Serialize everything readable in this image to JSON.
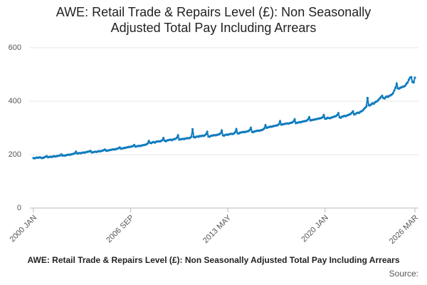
{
  "chart_data": {
    "type": "line",
    "title": "AWE: Retail Trade & Repairs Level (£): Non Seasonally Adjusted Total Pay Including Arrears",
    "footer": "AWE: Retail Trade & Repairs Level (£): Non Seasonally Adjusted Total Pay Including Arrears",
    "source": "Source:",
    "categories": [
      "2000 JAN",
      null,
      null,
      null,
      null,
      null,
      null,
      null,
      null,
      null,
      null,
      null,
      null,
      null,
      null,
      null,
      null,
      null,
      null,
      null,
      null,
      null,
      null,
      null,
      null,
      null,
      null,
      null,
      null,
      null,
      null,
      null,
      null,
      null,
      null,
      null,
      null,
      null,
      null,
      null,
      null,
      null,
      null,
      null,
      null,
      null,
      null,
      null,
      null,
      null,
      null,
      null,
      null,
      null,
      null,
      null,
      null,
      null,
      null,
      null,
      null,
      null,
      null,
      null,
      null,
      null,
      null,
      null,
      null,
      null,
      null,
      null,
      null,
      null,
      null,
      null,
      null,
      null,
      null,
      null,
      "2006 SEP",
      null,
      null,
      null,
      null,
      null,
      null,
      null,
      null,
      null,
      null,
      null,
      null,
      null,
      null,
      null,
      null,
      null,
      null,
      null,
      null,
      null,
      null,
      null,
      null,
      null,
      null,
      null,
      null,
      null,
      null,
      null,
      null,
      null,
      null,
      null,
      null,
      null,
      null,
      null,
      null,
      null,
      null,
      null,
      null,
      null,
      null,
      null,
      null,
      null,
      null,
      null,
      null,
      null,
      null,
      null,
      null,
      null,
      null,
      null,
      null,
      null,
      null,
      null,
      null,
      null,
      null,
      null,
      null,
      null,
      null,
      null,
      null,
      null,
      null,
      null,
      null,
      null,
      null,
      null,
      "2013 MAY",
      null,
      null,
      null,
      null,
      null,
      null,
      null,
      null,
      null,
      null,
      null,
      null,
      null,
      null,
      null,
      null,
      null,
      null,
      null,
      null,
      null,
      null,
      null,
      null,
      null,
      null,
      null,
      null,
      null,
      null,
      null,
      null,
      null,
      null,
      null,
      null,
      null,
      null,
      null,
      null,
      null,
      null,
      null,
      null,
      null,
      null,
      null,
      null,
      null,
      null,
      null,
      null,
      null,
      null,
      null,
      null,
      null,
      null,
      null,
      null,
      null,
      null,
      null,
      null,
      null,
      null,
      null,
      null,
      null,
      null,
      null,
      null,
      null,
      null,
      null,
      null,
      null,
      null,
      null,
      "2020 JAN",
      null,
      null,
      null,
      null,
      null,
      null,
      null,
      null,
      null,
      null,
      null,
      null,
      null,
      null,
      null,
      null,
      null,
      null,
      null,
      null,
      null,
      null,
      null,
      null,
      null,
      null,
      null,
      null,
      null,
      null,
      null,
      null,
      null,
      null,
      null,
      null,
      null,
      null,
      null,
      null,
      null,
      null,
      null,
      null,
      null,
      null,
      null,
      null,
      null,
      null,
      null,
      null,
      null,
      null,
      null,
      null,
      null,
      null,
      null,
      null,
      null,
      null,
      null,
      null,
      null,
      null,
      null,
      null,
      null,
      null,
      null,
      null,
      null,
      "2026 MAR"
    ],
    "values": [
      187,
      186,
      188,
      189,
      188,
      190,
      189,
      187,
      188,
      190,
      192,
      194,
      190,
      191,
      192,
      191,
      193,
      194,
      193,
      194,
      195,
      196,
      197,
      201,
      196,
      197,
      196,
      198,
      199,
      200,
      199,
      201,
      202,
      203,
      205,
      211,
      204,
      205,
      206,
      205,
      207,
      208,
      207,
      209,
      210,
      211,
      212,
      214,
      208,
      209,
      210,
      211,
      210,
      212,
      213,
      212,
      214,
      215,
      217,
      219,
      214,
      215,
      216,
      217,
      218,
      219,
      220,
      219,
      221,
      222,
      224,
      227,
      222,
      223,
      224,
      225,
      226,
      227,
      228,
      229,
      229,
      231,
      232,
      236,
      230,
      231,
      232,
      233,
      232,
      234,
      235,
      236,
      237,
      238,
      242,
      251,
      244,
      243,
      246,
      247,
      245,
      248,
      249,
      250,
      249,
      251,
      254,
      262,
      252,
      250,
      253,
      254,
      255,
      256,
      254,
      257,
      258,
      259,
      263,
      272,
      256,
      257,
      258,
      259,
      258,
      260,
      261,
      262,
      261,
      263,
      267,
      295,
      266,
      264,
      267,
      268,
      267,
      270,
      269,
      271,
      270,
      272,
      276,
      285,
      268,
      267,
      270,
      271,
      272,
      273,
      272,
      274,
      275,
      276,
      280,
      290,
      272,
      271,
      274,
      275,
      274,
      276,
      277,
      278,
      277,
      279,
      284,
      295,
      280,
      279,
      282,
      283,
      284,
      285,
      284,
      286,
      287,
      288,
      292,
      300,
      285,
      284,
      287,
      288,
      289,
      290,
      289,
      291,
      292,
      294,
      298,
      310,
      300,
      302,
      303,
      305,
      304,
      306,
      307,
      308,
      309,
      310,
      314,
      325,
      312,
      313,
      314,
      315,
      316,
      317,
      316,
      318,
      319,
      320,
      324,
      332,
      318,
      319,
      320,
      322,
      321,
      323,
      324,
      325,
      326,
      327,
      332,
      340,
      328,
      329,
      330,
      331,
      332,
      333,
      334,
      335,
      336,
      337,
      340,
      348,
      335,
      334,
      338,
      337,
      336,
      338,
      340,
      341,
      343,
      344,
      348,
      355,
      340,
      338,
      342,
      343,
      345,
      344,
      346,
      348,
      350,
      352,
      356,
      362,
      350,
      352,
      355,
      357,
      356,
      360,
      362,
      365,
      370,
      375,
      380,
      412,
      385,
      384,
      388,
      392,
      390,
      395,
      398,
      400,
      405,
      410,
      415,
      420,
      412,
      410,
      415,
      418,
      416,
      420,
      422,
      425,
      430,
      440,
      450,
      465,
      448,
      447,
      450,
      452,
      454,
      455,
      458,
      465,
      470,
      480,
      488,
      490,
      472,
      470,
      488
    ],
    "color": "#0f7cbf",
    "ylim": [
      0,
      600
    ],
    "yticks": [
      0,
      200,
      400,
      600
    ],
    "grid": true
  }
}
